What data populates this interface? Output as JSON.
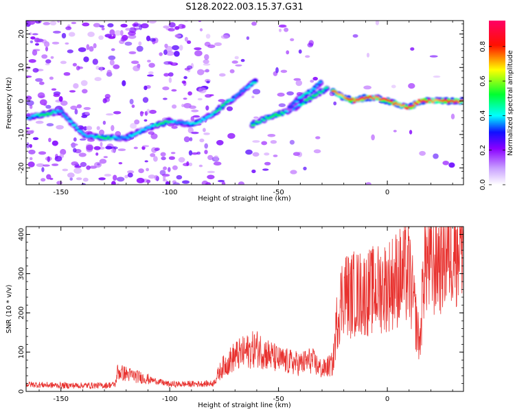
{
  "title": "S128.2022.003.15.37.G31",
  "chart_data": [
    {
      "type": "heatmap",
      "xlabel": "Height of straight line (km)",
      "ylabel": "Frequency (Hz)",
      "xlim": [
        -166,
        35
      ],
      "ylim": [
        -25,
        24
      ],
      "xticks": [
        -150,
        -100,
        -50,
        0
      ],
      "yticks": [
        -20,
        -10,
        0,
        10,
        20
      ],
      "colorbar": {
        "label": "Normalized spectral amplitude",
        "range": [
          0,
          0.95
        ],
        "ticks": [
          "0.0",
          "0.2",
          "0.4",
          "0.6",
          "0.8"
        ],
        "colors": [
          "#ffffff",
          "#8a00ff",
          "#0010ff",
          "#00ffff",
          "#00ff00",
          "#ffff00",
          "#ff0000",
          "#ff0066"
        ]
      },
      "ridges": [
        {
          "x": [
            -166,
            -150,
            -140,
            -130,
            -120,
            -110,
            -100,
            -90,
            -80,
            -75,
            -70,
            -65,
            -60
          ],
          "y": [
            -5,
            -3,
            -10,
            -11,
            -11,
            -8,
            -6,
            -7,
            -4,
            -1,
            1,
            4,
            6
          ],
          "amplitude": 0.45
        },
        {
          "x": [
            -62,
            -55,
            -45,
            -40,
            -35,
            -30,
            -27
          ],
          "y": [
            -7,
            -5,
            -3,
            -1,
            1,
            3,
            4
          ],
          "amplitude": 0.5
        },
        {
          "x": [
            -45,
            -40,
            -35,
            -30
          ],
          "y": [
            -2,
            1,
            3,
            6
          ],
          "amplitude": 0.4
        },
        {
          "x": [
            -25,
            -20,
            -15,
            -10,
            -5,
            0,
            5,
            10,
            15,
            25,
            35
          ],
          "y": [
            3,
            1,
            0,
            1,
            1,
            0,
            -1,
            -2,
            0,
            0,
            0
          ],
          "amplitude": 0.9
        }
      ]
    },
    {
      "type": "line",
      "xlabel": "Height of straight line (km)",
      "ylabel": "SNR (10 * v/v)",
      "xlim": [
        -166,
        35
      ],
      "ylim": [
        0,
        420
      ],
      "xticks": [
        -150,
        -100,
        -50,
        0
      ],
      "yticks": [
        0,
        100,
        200,
        300,
        400
      ],
      "color": "#e8322f",
      "x": [
        -166,
        -150,
        -130,
        -125,
        -124,
        -100,
        -80,
        -76,
        -70,
        -60,
        -50,
        -40,
        -35,
        -30,
        -25,
        -23,
        -20,
        -17,
        -16,
        -10,
        -5,
        0,
        5,
        10,
        14,
        15,
        17,
        20,
        25,
        30,
        35
      ],
      "y": [
        18,
        15,
        15,
        18,
        50,
        18,
        20,
        60,
        90,
        110,
        80,
        70,
        80,
        55,
        70,
        190,
        260,
        240,
        250,
        250,
        260,
        270,
        290,
        300,
        150,
        120,
        340,
        320,
        350,
        380,
        400
      ]
    }
  ]
}
